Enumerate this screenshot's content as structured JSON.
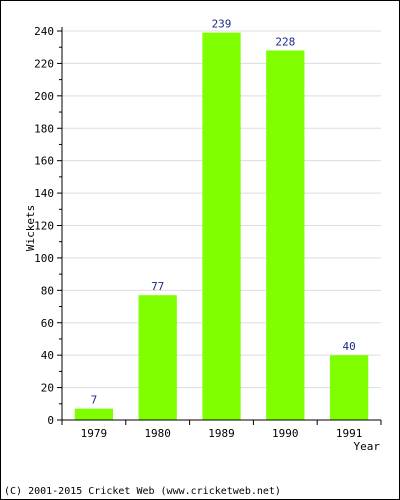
{
  "chart_data": {
    "type": "bar",
    "categories": [
      "1979",
      "1980",
      "1989",
      "1990",
      "1991"
    ],
    "values": [
      7,
      77,
      239,
      228,
      40
    ],
    "title": "",
    "xlabel": "Year",
    "ylabel": "Wickets",
    "ylim": [
      0,
      240
    ],
    "yticks": [
      0,
      20,
      40,
      60,
      80,
      100,
      120,
      140,
      160,
      180,
      200,
      220,
      240
    ],
    "grid": true,
    "bar_color": "#80ff00",
    "label_color": "#1a2a8a",
    "grid_color": "#dddddd"
  },
  "footer": {
    "copyright": "(C) 2001-2015 Cricket Web (www.cricketweb.net)"
  }
}
